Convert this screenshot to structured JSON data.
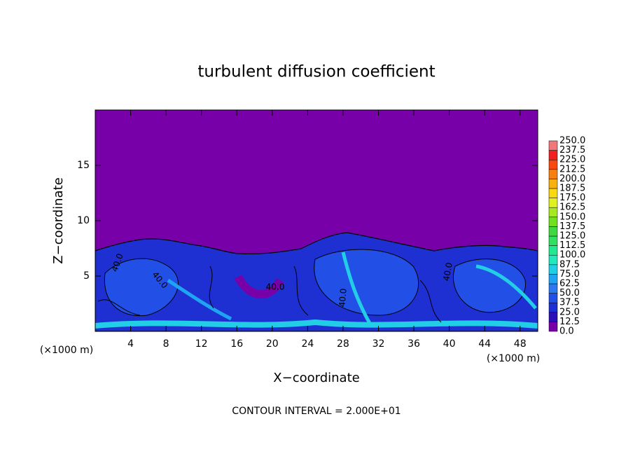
{
  "chart_data": {
    "type": "contour",
    "title": "turbulent diffusion coefficient",
    "x_label": "X−coordinate",
    "y_label": "Z−coordinate",
    "x_unit_left": "(×1000 m)",
    "x_unit_right": "(×1000 m)",
    "footer": "CONTOUR INTERVAL = 2.000E+01",
    "xlim": [
      0,
      50
    ],
    "ylim": [
      0,
      20
    ],
    "xticks": [
      4,
      8,
      12,
      16,
      20,
      24,
      28,
      32,
      36,
      40,
      44,
      48
    ],
    "yticks": [
      5,
      10,
      15
    ],
    "contour_labels": [
      "40.0",
      "40.0",
      "40.0",
      "40.0",
      "40.0"
    ],
    "colorbar": {
      "levels": [
        {
          "value": 0,
          "label": "0.0"
        },
        {
          "value": 12.5,
          "label": "12.5"
        },
        {
          "value": 25,
          "label": "25.0"
        },
        {
          "value": 37.5,
          "label": "37.5"
        },
        {
          "value": 50,
          "label": "50.0"
        },
        {
          "value": 62.5,
          "label": "62.5"
        },
        {
          "value": 75,
          "label": "75.0"
        },
        {
          "value": 87.5,
          "label": "87.5"
        },
        {
          "value": 100,
          "label": "100.0"
        },
        {
          "value": 112.5,
          "label": "112.5"
        },
        {
          "value": 125,
          "label": "125.0"
        },
        {
          "value": 137.5,
          "label": "137.5"
        },
        {
          "value": 150,
          "label": "150.0"
        },
        {
          "value": 162.5,
          "label": "162.5"
        },
        {
          "value": 175,
          "label": "175.0"
        },
        {
          "value": 187.5,
          "label": "187.5"
        },
        {
          "value": 200,
          "label": "200.0"
        },
        {
          "value": 212.5,
          "label": "212.5"
        },
        {
          "value": 225,
          "label": "225.0"
        },
        {
          "value": 237.5,
          "label": "237.5"
        },
        {
          "value": 250,
          "label": "250.0"
        }
      ],
      "colors": [
        "#7800a8",
        "#2a10b8",
        "#1e30d2",
        "#2250e6",
        "#2c78f0",
        "#1ea4f2",
        "#22cde6",
        "#22e8be",
        "#22e890",
        "#30e060",
        "#40d840",
        "#70e020",
        "#a8e820",
        "#e0f020",
        "#f8d810",
        "#f8b010",
        "#f88010",
        "#f84810",
        "#f02020",
        "#f07878"
      ]
    }
  }
}
